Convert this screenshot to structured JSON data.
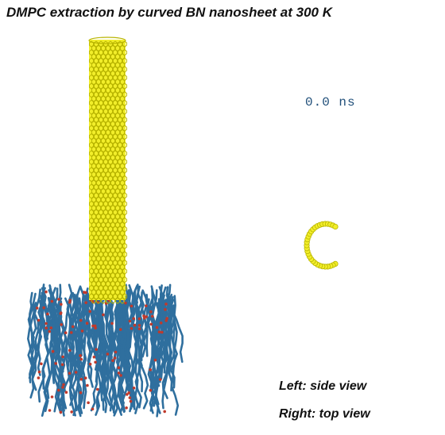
{
  "title": "DMPC extraction by curved BN nanosheet at 300 K",
  "time_label": "0.0 ns",
  "captions": {
    "left": "Left: side view",
    "right": "Right: top view"
  },
  "scene": {
    "nanosheet_color": "#f2ee2a",
    "nanosheet_edge": "#b8b400",
    "lipid_tail_color": "#2f6f9e",
    "lipid_head_color": "#c0392b"
  }
}
